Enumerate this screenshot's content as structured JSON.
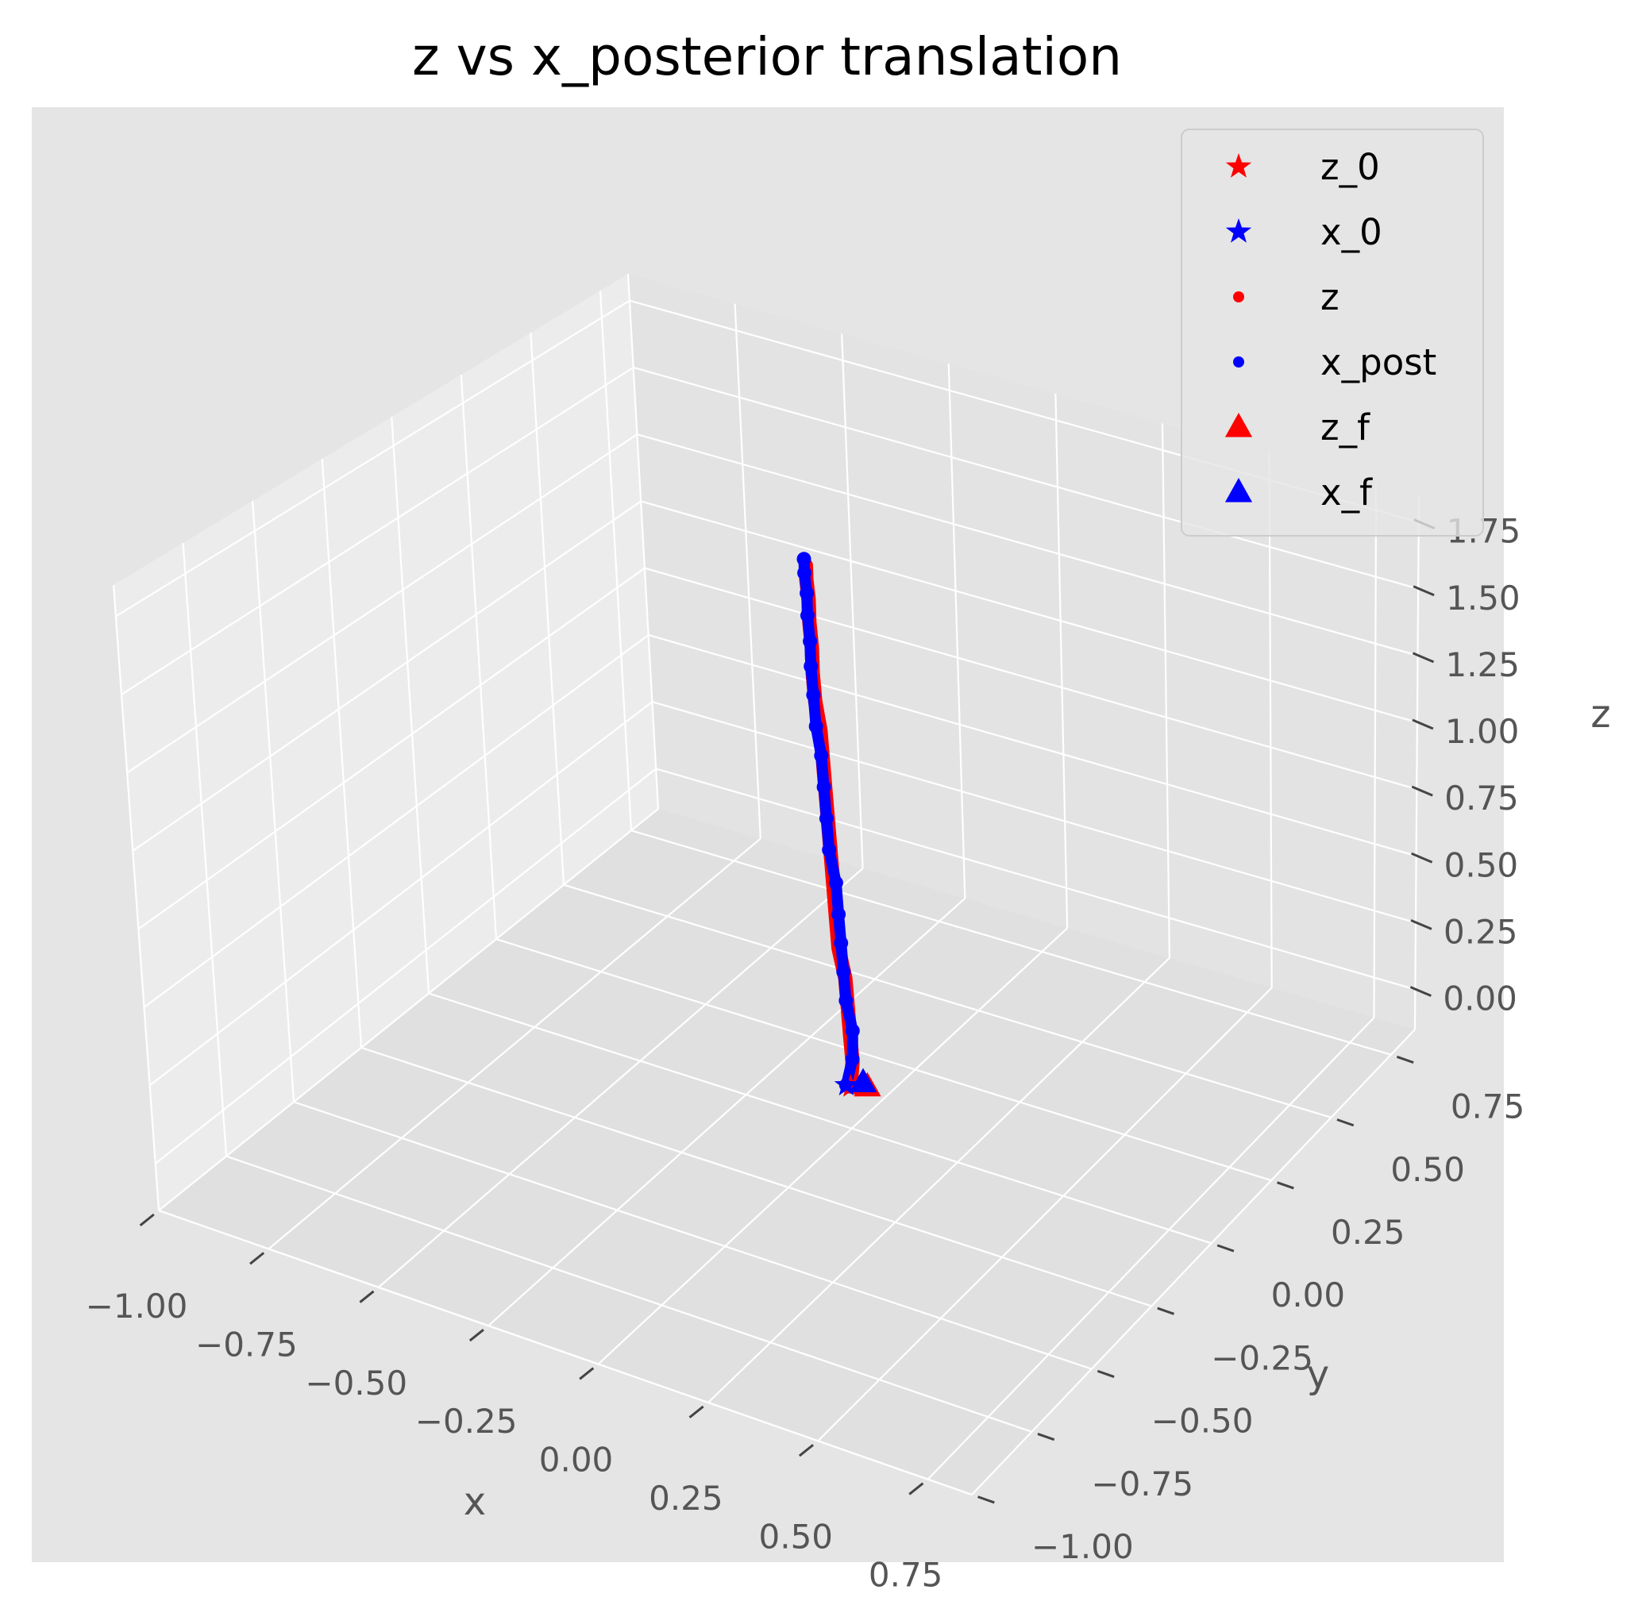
{
  "chart_data": {
    "type": "scatter",
    "title": "z vs x_posterior translation",
    "projection": "3d",
    "xlabel": "x",
    "ylabel": "y",
    "zlabel": "z",
    "xlim": [
      -1.0,
      0.85
    ],
    "ylim": [
      -1.0,
      0.85
    ],
    "zlim": [
      -0.15,
      1.85
    ],
    "x_ticks": [
      "−1.00",
      "−0.75",
      "−0.50",
      "−0.25",
      "0.00",
      "0.25",
      "0.50",
      "0.75"
    ],
    "y_ticks": [
      "−1.00",
      "−0.75",
      "−0.50",
      "−0.25",
      "0.00",
      "0.25",
      "0.50",
      "0.75"
    ],
    "z_ticks": [
      "0.00",
      "0.25",
      "0.50",
      "0.75",
      "1.00",
      "1.25",
      "1.50",
      "1.75"
    ],
    "grid": true,
    "legend_position": "top-right",
    "legend": [
      {
        "label": "z_0",
        "marker": "star",
        "color": "#ff0000"
      },
      {
        "label": "x_0",
        "marker": "star",
        "color": "#0000ff"
      },
      {
        "label": "z",
        "marker": "dot",
        "color": "#ff0000"
      },
      {
        "label": "x_post",
        "marker": "dot",
        "color": "#0000ff"
      },
      {
        "label": "z_f",
        "marker": "triangle",
        "color": "#ff0000"
      },
      {
        "label": "x_f",
        "marker": "triangle",
        "color": "#0000ff"
      }
    ],
    "series": [
      {
        "name": "z",
        "color": "#ff0000",
        "x": [
          0.0,
          0.0,
          -0.01,
          -0.02,
          -0.03,
          -0.05,
          -0.06,
          -0.07,
          -0.08,
          -0.09,
          -0.1,
          -0.11,
          -0.12,
          -0.13,
          -0.14,
          -0.14,
          -0.15,
          -0.15,
          -0.16,
          -0.16
        ],
        "y": [
          0.0,
          0.01,
          0.02,
          0.03,
          0.04,
          0.05,
          0.06,
          0.07,
          0.08,
          0.09,
          0.1,
          0.11,
          0.12,
          0.12,
          0.13,
          0.13,
          0.14,
          0.14,
          0.15,
          0.15
        ],
        "z": [
          0.0,
          0.08,
          0.16,
          0.25,
          0.34,
          0.43,
          0.52,
          0.62,
          0.72,
          0.82,
          0.92,
          1.02,
          1.12,
          1.22,
          1.31,
          1.4,
          1.48,
          1.56,
          1.62,
          1.67
        ]
      },
      {
        "name": "x_post",
        "color": "#0000ff",
        "x": [
          -0.01,
          0.0,
          -0.01,
          -0.03,
          -0.04,
          -0.05,
          -0.06,
          -0.07,
          -0.09,
          -0.1,
          -0.11,
          -0.12,
          -0.13,
          -0.14,
          -0.15,
          -0.15,
          -0.16,
          -0.16,
          -0.17,
          -0.17
        ],
        "y": [
          0.0,
          0.01,
          0.03,
          0.04,
          0.05,
          0.06,
          0.07,
          0.08,
          0.09,
          0.1,
          0.11,
          0.12,
          0.12,
          0.13,
          0.14,
          0.14,
          0.15,
          0.15,
          0.16,
          0.16
        ],
        "z": [
          0.0,
          0.09,
          0.17,
          0.26,
          0.35,
          0.44,
          0.53,
          0.63,
          0.73,
          0.83,
          0.93,
          1.03,
          1.13,
          1.23,
          1.32,
          1.41,
          1.49,
          1.57,
          1.63,
          1.68
        ]
      }
    ],
    "markers": [
      {
        "name": "z_0",
        "marker": "star",
        "color": "#ff0000",
        "x": 0.0,
        "y": 0.0,
        "z": 0.0
      },
      {
        "name": "x_0",
        "marker": "star",
        "color": "#0000ff",
        "x": -0.01,
        "y": 0.0,
        "z": 0.0
      },
      {
        "name": "z_f",
        "marker": "triangle",
        "color": "#ff0000",
        "x": 0.04,
        "y": 0.0,
        "z": 0.02
      },
      {
        "name": "x_f",
        "marker": "triangle",
        "color": "#0000ff",
        "x": 0.03,
        "y": 0.0,
        "z": 0.03
      }
    ]
  },
  "colors": {
    "axes_background": "#e5e5e5",
    "pane_left": "#ececec",
    "pane_right": "#e3e3e3",
    "pane_floor": "#e0e0e0",
    "grid": "#ffffff",
    "tick_text": "#555555"
  }
}
